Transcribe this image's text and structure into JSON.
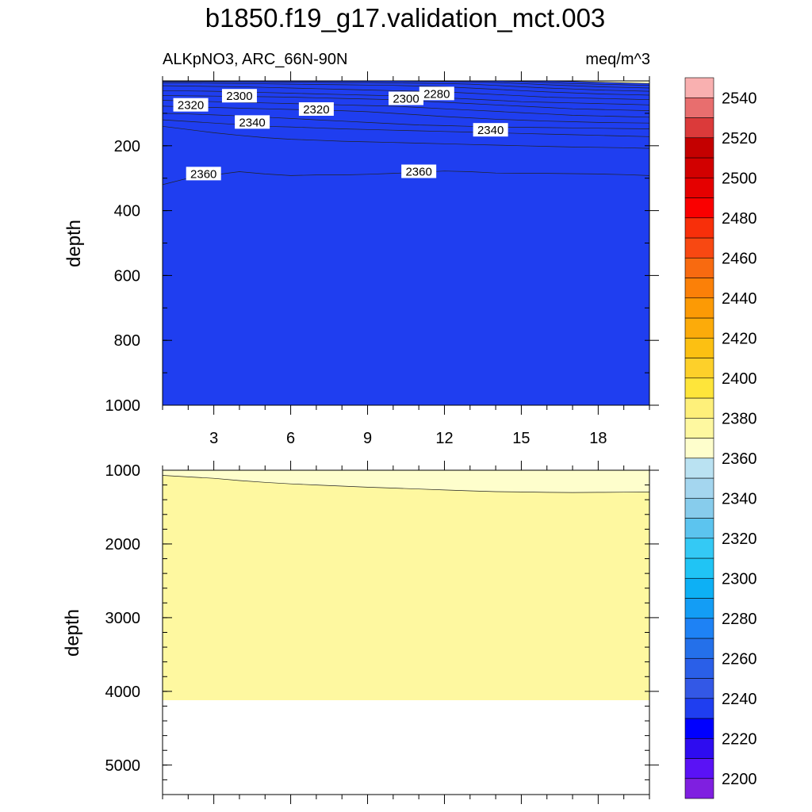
{
  "chart_data": {
    "type": "heatmap",
    "title": "b1850.f19_g17.validation_mct.003",
    "variable_label": "ALKpNO3, ARC_66N-90N",
    "units": "meq/m^3",
    "colorbar": {
      "min": 2190,
      "max": 2560,
      "step": 10,
      "tick_values": [
        2200,
        2220,
        2240,
        2260,
        2280,
        2300,
        2320,
        2340,
        2360,
        2380,
        2400,
        2420,
        2440,
        2460,
        2480,
        2500,
        2520,
        2540
      ],
      "colors": [
        "#7f1fe0",
        "#5a12f5",
        "#2e0cf0",
        "#0000ff",
        "#1f3ef0",
        "#3358e6",
        "#2a5fe8",
        "#2470ea",
        "#1e82f5",
        "#139df5",
        "#0db0f5",
        "#20c4f5",
        "#34c9f5",
        "#5cc4ef",
        "#87ccec",
        "#a4d6ef",
        "#bae2f2",
        "#fefecc",
        "#fef8a0",
        "#fef07a",
        "#fee53a",
        "#fdd02a",
        "#fcc012",
        "#fcab0a",
        "#fc9a05",
        "#fb8008",
        "#f86a10",
        "#f84812",
        "#f82f0a",
        "#fa0000",
        "#e50000",
        "#d20000",
        "#c40000",
        "#db3a3a",
        "#e86e6e",
        "#f9b0b0"
      ]
    },
    "panels": [
      {
        "name": "upper",
        "ylabel": "depth",
        "y_axis": [
          0,
          1000
        ],
        "y_ticks": [
          200,
          400,
          600,
          800,
          1000
        ],
        "x_axis": [
          1,
          20
        ],
        "x_ticks": [
          3,
          6,
          9,
          12,
          15,
          18
        ],
        "contour_labels": [
          {
            "text": "2320",
            "x": 2.1,
            "y": 75
          },
          {
            "text": "2300",
            "x": 4.0,
            "y": 47
          },
          {
            "text": "2340",
            "x": 4.5,
            "y": 128
          },
          {
            "text": "2320",
            "x": 7.0,
            "y": 88
          },
          {
            "text": "2300",
            "x": 10.5,
            "y": 55
          },
          {
            "text": "2280",
            "x": 11.7,
            "y": 40
          },
          {
            "text": "2360",
            "x": 2.6,
            "y": 287
          },
          {
            "text": "2360",
            "x": 11.0,
            "y": 280
          },
          {
            "text": "2340",
            "x": 13.8,
            "y": 152
          }
        ]
      },
      {
        "name": "lower",
        "ylabel": "depth",
        "y_axis": [
          1000,
          5400
        ],
        "y_ticks": [
          1000,
          2000,
          3000,
          4000,
          5000
        ],
        "x_axis": [
          1,
          20
        ],
        "bottom_of_data": 4120
      }
    ],
    "fields": {
      "upper_bands": [
        {
          "value": 2365,
          "top": [
            320,
            300,
            290,
            280,
            287,
            292,
            290,
            290,
            288,
            285,
            282,
            278,
            280,
            284,
            285,
            285,
            286,
            287,
            289,
            292
          ]
        },
        {
          "value": 2355,
          "top": [
            140,
            150,
            160,
            168,
            175,
            180,
            183,
            186,
            188,
            190,
            192,
            194,
            196,
            198,
            200,
            202,
            204,
            205,
            206,
            208
          ]
        },
        {
          "value": 2345,
          "top": [
            120,
            125,
            130,
            135,
            140,
            142,
            145,
            148,
            150,
            152,
            154,
            156,
            158,
            160,
            162,
            164,
            166,
            168,
            170,
            172
          ]
        },
        {
          "value": 2335,
          "top": [
            100,
            102,
            105,
            108,
            112,
            116,
            120,
            124,
            128,
            132,
            136,
            138,
            140,
            142,
            143,
            144,
            145,
            146,
            147,
            148
          ]
        },
        {
          "value": 2325,
          "top": [
            78,
            80,
            82,
            84,
            86,
            88,
            90,
            92,
            95,
            100,
            105,
            110,
            114,
            118,
            121,
            124,
            126,
            128,
            129,
            130
          ]
        },
        {
          "value": 2315,
          "top": [
            60,
            62,
            64,
            66,
            68,
            70,
            72,
            74,
            76,
            78,
            82,
            86,
            90,
            94,
            98,
            102,
            106,
            108,
            110,
            112
          ]
        },
        {
          "value": 2305,
          "top": [
            45,
            46,
            47,
            48,
            49,
            50,
            52,
            54,
            56,
            58,
            62,
            66,
            70,
            74,
            78,
            82,
            86,
            88,
            90,
            92
          ]
        },
        {
          "value": 2295,
          "top": [
            30,
            31,
            32,
            34,
            36,
            38,
            40,
            42,
            44,
            46,
            48,
            52,
            56,
            60,
            64,
            66,
            68,
            70,
            72,
            74
          ]
        },
        {
          "value": 2285,
          "top": [
            15,
            16,
            17,
            18,
            20,
            22,
            24,
            26,
            28,
            30,
            32,
            34,
            38,
            42,
            46,
            50,
            52,
            54,
            56,
            58
          ]
        },
        {
          "value": 2275,
          "top": [
            6,
            6,
            7,
            8,
            9,
            10,
            11,
            12,
            13,
            14,
            16,
            18,
            22,
            26,
            30,
            34,
            37,
            40,
            42,
            44
          ]
        },
        {
          "value": 2265,
          "top": [
            2,
            2,
            2,
            3,
            3,
            4,
            4,
            5,
            5,
            6,
            7,
            8,
            10,
            14,
            18,
            22,
            25,
            28,
            30,
            32
          ]
        },
        {
          "value": 2255,
          "top": [
            0,
            0,
            0,
            0,
            0,
            0,
            0,
            0,
            0,
            0,
            1,
            2,
            3,
            5,
            8,
            12,
            15,
            18,
            20,
            22
          ]
        },
        {
          "value": 2245,
          "top": [
            0,
            0,
            0,
            0,
            0,
            0,
            0,
            0,
            0,
            0,
            0,
            0,
            0,
            0,
            2,
            5,
            8,
            10,
            12,
            14
          ]
        },
        {
          "value": 2235,
          "top": [
            0,
            0,
            0,
            0,
            0,
            0,
            0,
            0,
            0,
            0,
            0,
            0,
            0,
            0,
            0,
            0,
            2,
            4,
            6,
            8
          ]
        }
      ],
      "lower_bands": [
        {
          "value": 2365,
          "top": [
            1000,
            1000,
            1000,
            1000,
            1000,
            1000,
            1000,
            1000,
            1000,
            1000,
            1000,
            1000,
            1000,
            1000,
            1000,
            1000,
            1000,
            1000,
            1000,
            1000
          ]
        },
        {
          "value": 2375,
          "top": [
            1070,
            1090,
            1110,
            1140,
            1165,
            1185,
            1200,
            1215,
            1230,
            1242,
            1255,
            1268,
            1280,
            1290,
            1295,
            1300,
            1302,
            1300,
            1298,
            1295
          ]
        }
      ]
    }
  }
}
